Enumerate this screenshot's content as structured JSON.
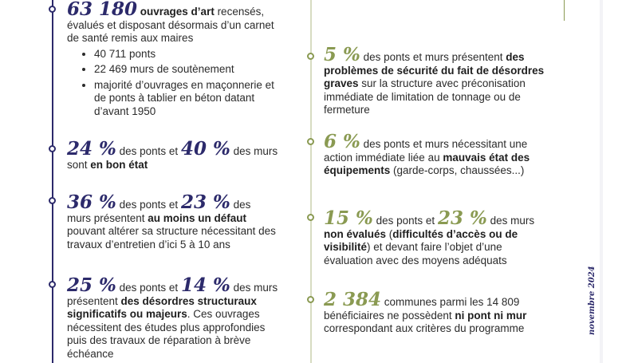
{
  "colors": {
    "navy": "#2c2a6b",
    "olive": "#8a9a52"
  },
  "left": [
    {
      "big1": "63 180",
      "t1": " ouvrages d’art",
      "t2": " recensés, évalués et disposant désormais d’un carnet de santé remis aux maires",
      "bullets": [
        "40 711 ponts",
        "22 469 murs de soutènement",
        "majorité d’ouvrages en maçonnerie et de ponts à tablier en béton datant d’avant 1950"
      ]
    },
    {
      "big1": "24 %",
      "t1": " des ponts et ",
      "big2": "40 %",
      "t2": " des murs sont ",
      "b1": "en bon état"
    },
    {
      "big1": "36 %",
      "t1": " des ponts et ",
      "big2": "23 %",
      "t2": " des murs présentent ",
      "b1": "au moins un défaut",
      "t3": " pouvant altérer sa structure nécessitant des travaux d’entretien d’ici 5 à 10 ans"
    },
    {
      "big1": "25 %",
      "t1": " des ponts et ",
      "big2": "14 %",
      "t2": " des murs présentent ",
      "b1": "des désordres structuraux significatifs ou majeurs",
      "t3": ". Ces ouvrages nécessitent des études plus approfondies puis des travaux de réparation à brève échéance"
    }
  ],
  "right": [
    {
      "big1": "5 %",
      "t1": " des ponts et murs présentent ",
      "b1": "des problèmes de sécurité du fait de désordres graves",
      "t2": " sur la structure avec préconisation immédiate de limitation de tonnage ou de fermeture"
    },
    {
      "big1": "6 %",
      "t1": " des ponts et murs nécessitant une action immédiate liée au ",
      "b1": "mauvais état des équipements",
      "t2": " (garde-corps, chaussées...)"
    },
    {
      "big1": "15 %",
      "t1": " des ponts et ",
      "big2": "23 %",
      "t2": " des murs ",
      "b1": "non évalués",
      "t3": " (",
      "b2": "difficultés d’accès ou de visibilité",
      "t4": ") et devant faire l’objet d’une évaluation avec des moyens adéquats"
    },
    {
      "big1": "2 384",
      "t1": " communes parmi les 14 809 bénéficiaires ne possèdent ",
      "b1": "ni pont ni mur",
      "t2": " correspondant aux critères du programme"
    }
  ],
  "side_date": "novembre 2024"
}
